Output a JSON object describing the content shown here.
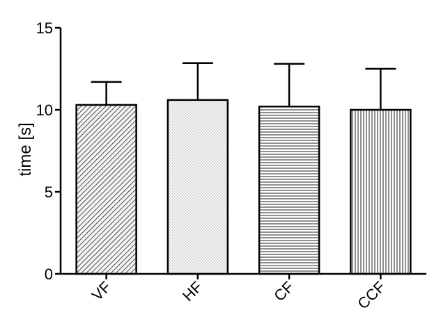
{
  "chart_data": {
    "type": "bar",
    "ylabel": "time [s]",
    "xlabel": "",
    "title": "",
    "ylim": [
      0,
      15
    ],
    "yticks": [
      0,
      5,
      10,
      15
    ],
    "categories": [
      "VF",
      "HF",
      "CF",
      "CCF"
    ],
    "values": [
      10.3,
      10.6,
      10.2,
      10.0
    ],
    "error_upper": [
      1.4,
      2.25,
      2.6,
      2.5
    ],
    "patterns": [
      "diagonal-hatch",
      "dots",
      "horizontal-lines",
      "vertical-lines"
    ],
    "grid": false,
    "legend": "none"
  }
}
